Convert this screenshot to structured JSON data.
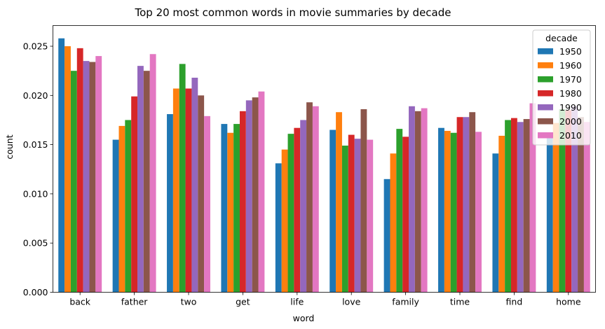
{
  "chart_data": {
    "type": "bar",
    "title": "Top 20 most common words in movie summaries by decade",
    "xlabel": "word",
    "ylabel": "count",
    "ylim": [
      0,
      0.0271
    ],
    "yticks": [
      "0.000",
      "0.005",
      "0.010",
      "0.015",
      "0.020",
      "0.025"
    ],
    "ytick_values": [
      0,
      0.005,
      0.01,
      0.015,
      0.02,
      0.025
    ],
    "grid": false,
    "legend": {
      "title": "decade",
      "placement": "top-right"
    },
    "categories": [
      "back",
      "father",
      "two",
      "get",
      "life",
      "love",
      "family",
      "time",
      "find",
      "home"
    ],
    "series": [
      {
        "name": "1950",
        "color": "#1f77b4",
        "values": [
          0.0258,
          0.0155,
          0.0181,
          0.0171,
          0.0131,
          0.0165,
          0.0115,
          0.0167,
          0.0141,
          0.0158
        ]
      },
      {
        "name": "1960",
        "color": "#ff7f0e",
        "values": [
          0.025,
          0.0169,
          0.0207,
          0.0162,
          0.0145,
          0.0183,
          0.0141,
          0.0164,
          0.0159,
          0.0172
        ]
      },
      {
        "name": "1970",
        "color": "#2ca02c",
        "values": [
          0.0225,
          0.0175,
          0.0232,
          0.0171,
          0.0161,
          0.0149,
          0.0166,
          0.0162,
          0.0175,
          0.0186
        ]
      },
      {
        "name": "1980",
        "color": "#d62728",
        "values": [
          0.0248,
          0.0199,
          0.0207,
          0.0184,
          0.0167,
          0.016,
          0.0158,
          0.0178,
          0.0177,
          0.0185
        ]
      },
      {
        "name": "1990",
        "color": "#9467bd",
        "values": [
          0.0235,
          0.023,
          0.0218,
          0.0195,
          0.0175,
          0.0156,
          0.0189,
          0.0178,
          0.0173,
          0.0189
        ]
      },
      {
        "name": "2000",
        "color": "#8c564b",
        "values": [
          0.0234,
          0.0225,
          0.02,
          0.0198,
          0.0193,
          0.0186,
          0.0184,
          0.0183,
          0.0176,
          0.0178
        ]
      },
      {
        "name": "2010",
        "color": "#e377c2",
        "values": [
          0.024,
          0.0242,
          0.0179,
          0.0204,
          0.0189,
          0.0155,
          0.0187,
          0.0163,
          0.0192,
          0.0173
        ]
      }
    ]
  }
}
